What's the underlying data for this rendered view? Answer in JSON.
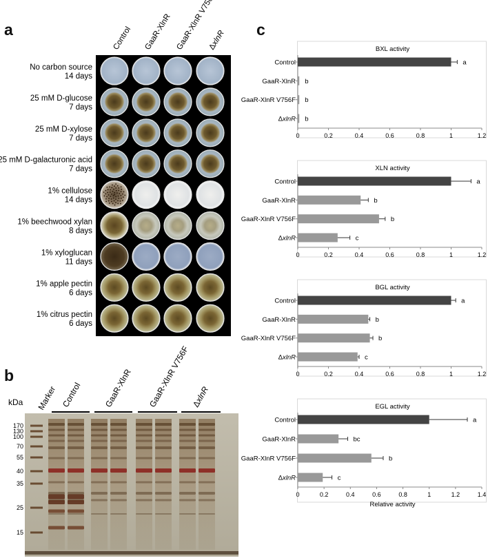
{
  "panel_a": {
    "letter": "a",
    "strains": [
      "Control",
      "GaaR-XlnR",
      "GaaR-XlnR V756F",
      "ΔxlnR"
    ],
    "conditions": [
      {
        "line1": "No carbon source",
        "line2": "14 days",
        "style": "none"
      },
      {
        "line1": "25 mM D-glucose",
        "line2": "7 days",
        "style": "brown"
      },
      {
        "line1": "25 mM D-xylose",
        "line2": "7 days",
        "style": "brown"
      },
      {
        "line1": "25 mM D-galacturonic acid",
        "line2": "7 days",
        "style": "brown"
      },
      {
        "line1": "1% cellulose",
        "line2": "14 days",
        "style": "cellulose"
      },
      {
        "line1": "1% beechwood xylan",
        "line2": "8 days",
        "style": "xylan"
      },
      {
        "line1": "1% xyloglucan",
        "line2": "11 days",
        "style": "xyloglucan"
      },
      {
        "line1": "1% apple pectin",
        "line2": "6 days",
        "style": "pectin"
      },
      {
        "line1": "1% citrus pectin",
        "line2": "6 days",
        "style": "pectin"
      }
    ]
  },
  "panel_b": {
    "letter": "b",
    "marker_label": "Marker",
    "unit_label": "kDa",
    "lane_groups": [
      "Control",
      "GaaR-XlnR",
      "GaaR-XlnR V756F",
      "ΔxlnR"
    ],
    "markers": [
      170,
      130,
      100,
      70,
      55,
      40,
      35,
      25,
      15
    ]
  },
  "panel_c": {
    "letter": "c",
    "x_axis_label": "Relative activity"
  },
  "chart_data": [
    {
      "type": "bar",
      "orientation": "horizontal",
      "title": "BXL activity",
      "categories": [
        "Control",
        "GaaR-XlnR",
        "GaaR-XlnR V756F",
        "ΔxlnR"
      ],
      "values": [
        1.0,
        0.01,
        0.01,
        0.01
      ],
      "errors": [
        0.04,
        0.0,
        0.0,
        0.0
      ],
      "letters": [
        "a",
        "b",
        "b",
        "b"
      ],
      "colors": [
        "#444444",
        "#999999",
        "#999999",
        "#999999"
      ],
      "xlim": [
        0,
        1.2
      ],
      "ticks": [
        0,
        0.2,
        0.4,
        0.6,
        0.8,
        1,
        1.2
      ]
    },
    {
      "type": "bar",
      "orientation": "horizontal",
      "title": "XLN activity",
      "categories": [
        "Control",
        "GaaR-XlnR",
        "GaaR-XlnR V756F",
        "ΔxlnR"
      ],
      "values": [
        1.0,
        0.41,
        0.53,
        0.26
      ],
      "errors": [
        0.13,
        0.05,
        0.04,
        0.08
      ],
      "letters": [
        "a",
        "b",
        "b",
        "c"
      ],
      "colors": [
        "#444444",
        "#999999",
        "#999999",
        "#999999"
      ],
      "xlim": [
        0,
        1.2
      ],
      "ticks": [
        0,
        0.2,
        0.4,
        0.6,
        0.8,
        1,
        1.2
      ]
    },
    {
      "type": "bar",
      "orientation": "horizontal",
      "title": "BGL  activity",
      "categories": [
        "Control",
        "GaaR-XlnR",
        "GaaR-XlnR V756F",
        "ΔxlnR"
      ],
      "values": [
        1.0,
        0.46,
        0.47,
        0.39
      ],
      "errors": [
        0.03,
        0.01,
        0.02,
        0.01
      ],
      "letters": [
        "a",
        "b",
        "b",
        "c"
      ],
      "colors": [
        "#444444",
        "#999999",
        "#999999",
        "#999999"
      ],
      "xlim": [
        0,
        1.2
      ],
      "ticks": [
        0,
        0.2,
        0.4,
        0.6,
        0.8,
        1,
        1.2
      ]
    },
    {
      "type": "bar",
      "orientation": "horizontal",
      "title": "EGL activity",
      "categories": [
        "Control",
        "GaaR-XlnR",
        "GaaR-XlnR V756F",
        "ΔxlnR"
      ],
      "values": [
        1.0,
        0.31,
        0.56,
        0.19
      ],
      "errors": [
        0.29,
        0.07,
        0.09,
        0.07
      ],
      "letters": [
        "a",
        "bc",
        "b",
        "c"
      ],
      "colors": [
        "#444444",
        "#999999",
        "#999999",
        "#999999"
      ],
      "xlim": [
        0,
        1.4
      ],
      "ticks": [
        0,
        0.2,
        0.4,
        0.6,
        0.8,
        1,
        1.2,
        1.4
      ],
      "xlabel": "Relative activity"
    }
  ]
}
